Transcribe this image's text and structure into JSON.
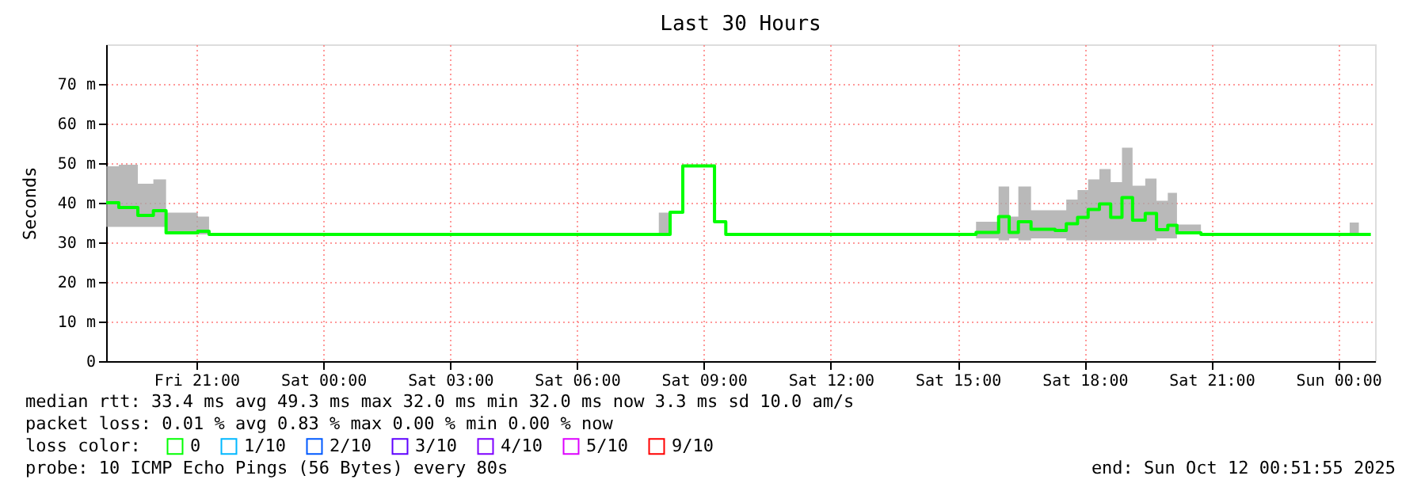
{
  "chart_data": {
    "type": "step",
    "title": "Last 30 Hours",
    "ylabel": "Seconds",
    "x": [
      "2025-10-10T18:52",
      "2025-10-10T19:10",
      "2025-10-10T19:37",
      "2025-10-10T19:59",
      "2025-10-10T20:17",
      "2025-10-10T21:02",
      "2025-10-10T21:18",
      "2025-10-11T07:56",
      "2025-10-11T08:12",
      "2025-10-11T08:30",
      "2025-10-11T09:15",
      "2025-10-11T09:31",
      "2025-10-11T15:26",
      "2025-10-11T15:58",
      "2025-10-11T16:13",
      "2025-10-11T16:26",
      "2025-10-11T16:44",
      "2025-10-11T17:18",
      "2025-10-11T17:34",
      "2025-10-11T17:50",
      "2025-10-11T18:05",
      "2025-10-11T18:21",
      "2025-10-11T18:37",
      "2025-10-11T18:53",
      "2025-10-11T19:08",
      "2025-10-11T19:26",
      "2025-10-11T19:42",
      "2025-10-11T19:58",
      "2025-10-11T20:11",
      "2025-10-11T20:45",
      "2025-10-12T00:16",
      "2025-10-12T00:29",
      "2025-10-12T00:46"
    ],
    "series": [
      {
        "name": "0",
        "color": "#00ff00",
        "values": [
          40.0,
          38.8,
          36.8,
          38.0,
          32.4,
          32.8,
          32.0,
          32.0,
          37.6,
          49.3,
          35.2,
          32.0,
          32.5,
          36.5,
          32.5,
          35.2,
          33.3,
          33.0,
          34.7,
          36.3,
          38.3,
          39.7,
          36.3,
          41.3,
          35.6,
          37.3,
          33.2,
          34.3,
          32.4,
          32.0,
          32.0,
          32.0,
          32.0
        ],
        "upper": [
          49.2,
          49.6,
          44.8,
          45.9,
          37.5,
          36.5,
          32.0,
          37.5,
          37.6,
          49.3,
          35.2,
          32.0,
          35.2,
          44.1,
          36.5,
          44.1,
          38.1,
          38.1,
          40.8,
          43.2,
          45.9,
          48.5,
          45.2,
          53.9,
          44.3,
          46.1,
          40.5,
          42.5,
          34.5,
          32.0,
          35.0,
          32.0,
          32.0
        ],
        "lower": [
          33.9,
          33.9,
          33.9,
          33.9,
          32.0,
          32.0,
          32.0,
          32.0,
          37.6,
          49.3,
          35.2,
          32.0,
          31.0,
          30.5,
          31.0,
          30.5,
          31.0,
          31.0,
          30.5,
          30.5,
          30.5,
          30.5,
          30.5,
          30.5,
          30.5,
          30.5,
          31.0,
          31.0,
          32.0,
          32.0,
          32.0,
          32.0,
          32.0
        ]
      },
      {
        "name": "1/10",
        "color": "#00b8ff",
        "values": [
          null,
          null,
          null,
          null,
          null,
          null,
          null,
          null,
          null,
          null,
          null,
          null,
          null,
          null,
          null,
          null,
          null,
          null,
          null,
          null,
          null,
          null,
          null,
          null,
          null,
          null,
          null,
          null,
          null,
          null,
          null,
          null,
          null
        ]
      },
      {
        "name": "2/10",
        "color": "#0059ff",
        "values": [
          null,
          null,
          null,
          null,
          null,
          null,
          null,
          null,
          null,
          null,
          null,
          null,
          null,
          null,
          null,
          null,
          null,
          null,
          null,
          null,
          null,
          null,
          null,
          null,
          null,
          null,
          null,
          null,
          null,
          null,
          null,
          null,
          null
        ]
      },
      {
        "name": "3/10",
        "color": "#5e00ff",
        "values": [
          null,
          null,
          null,
          null,
          null,
          null,
          null,
          null,
          null,
          null,
          null,
          null,
          null,
          null,
          null,
          null,
          null,
          null,
          null,
          null,
          null,
          null,
          null,
          null,
          null,
          null,
          null,
          null,
          null,
          null,
          null,
          null,
          null
        ]
      },
      {
        "name": "4/10",
        "color": "#7e00ff",
        "values": [
          null,
          null,
          null,
          null,
          null,
          null,
          null,
          null,
          null,
          null,
          null,
          null,
          null,
          null,
          null,
          null,
          null,
          null,
          null,
          null,
          null,
          null,
          null,
          null,
          null,
          null,
          null,
          null,
          null,
          null,
          null,
          null,
          null
        ]
      },
      {
        "name": "5/10",
        "color": "#dd00ff",
        "values": [
          null,
          null,
          null,
          null,
          null,
          null,
          null,
          null,
          null,
          null,
          null,
          null,
          null,
          null,
          null,
          null,
          null,
          null,
          null,
          null,
          null,
          null,
          null,
          null,
          null,
          null,
          null,
          null,
          null,
          null,
          null,
          null,
          null
        ]
      },
      {
        "name": "9/10",
        "color": "#ff0000",
        "values": [
          null,
          null,
          null,
          null,
          null,
          null,
          null,
          null,
          null,
          null,
          null,
          null,
          null,
          null,
          null,
          null,
          null,
          null,
          null,
          null,
          null,
          null,
          null,
          null,
          null,
          null,
          null,
          null,
          null,
          null,
          null,
          null,
          null
        ]
      }
    ],
    "legend_title": "loss color:",
    "legend": "bottom left",
    "xlim": [
      "2025-10-10T18:52",
      "2025-10-12T00:52"
    ],
    "xticks": [
      {
        "value": "2025-10-10T21:00",
        "label": "Fri 21:00"
      },
      {
        "value": "2025-10-11T00:00",
        "label": "Sat 00:00"
      },
      {
        "value": "2025-10-11T03:00",
        "label": "Sat 03:00"
      },
      {
        "value": "2025-10-11T06:00",
        "label": "Sat 06:00"
      },
      {
        "value": "2025-10-11T09:00",
        "label": "Sat 09:00"
      },
      {
        "value": "2025-10-11T12:00",
        "label": "Sat 12:00"
      },
      {
        "value": "2025-10-11T15:00",
        "label": "Sat 15:00"
      },
      {
        "value": "2025-10-11T18:00",
        "label": "Sat 18:00"
      },
      {
        "value": "2025-10-11T21:00",
        "label": "Sat 21:00"
      },
      {
        "value": "2025-10-12T00:00",
        "label": "Sun 00:00"
      }
    ],
    "ylim": [
      0,
      80
    ],
    "yticks": [
      0,
      {
        "value": 10,
        "label": "10 m"
      },
      {
        "value": 20,
        "label": "20 m"
      },
      {
        "value": 30,
        "label": "30 m"
      },
      {
        "value": 40,
        "label": "40 m"
      },
      {
        "value": 50,
        "label": "50 m"
      },
      {
        "value": 60,
        "label": "60 m"
      },
      {
        "value": 70,
        "label": "70 m"
      }
    ],
    "grid": true,
    "annotations": [
      "median rtt:  33.4 ms avg  49.3 ms max  32.0 ms min  32.0 ms now  3.3 ms sd  10.0   am/s",
      "packet loss: 0.01 % avg  0.83 % max  0.00 % min  0.00 % now",
      "probe:       10 ICMP Echo Pings (56 Bytes) every 80s",
      "end: Sun Oct 12 00:51:55 2025"
    ]
  }
}
